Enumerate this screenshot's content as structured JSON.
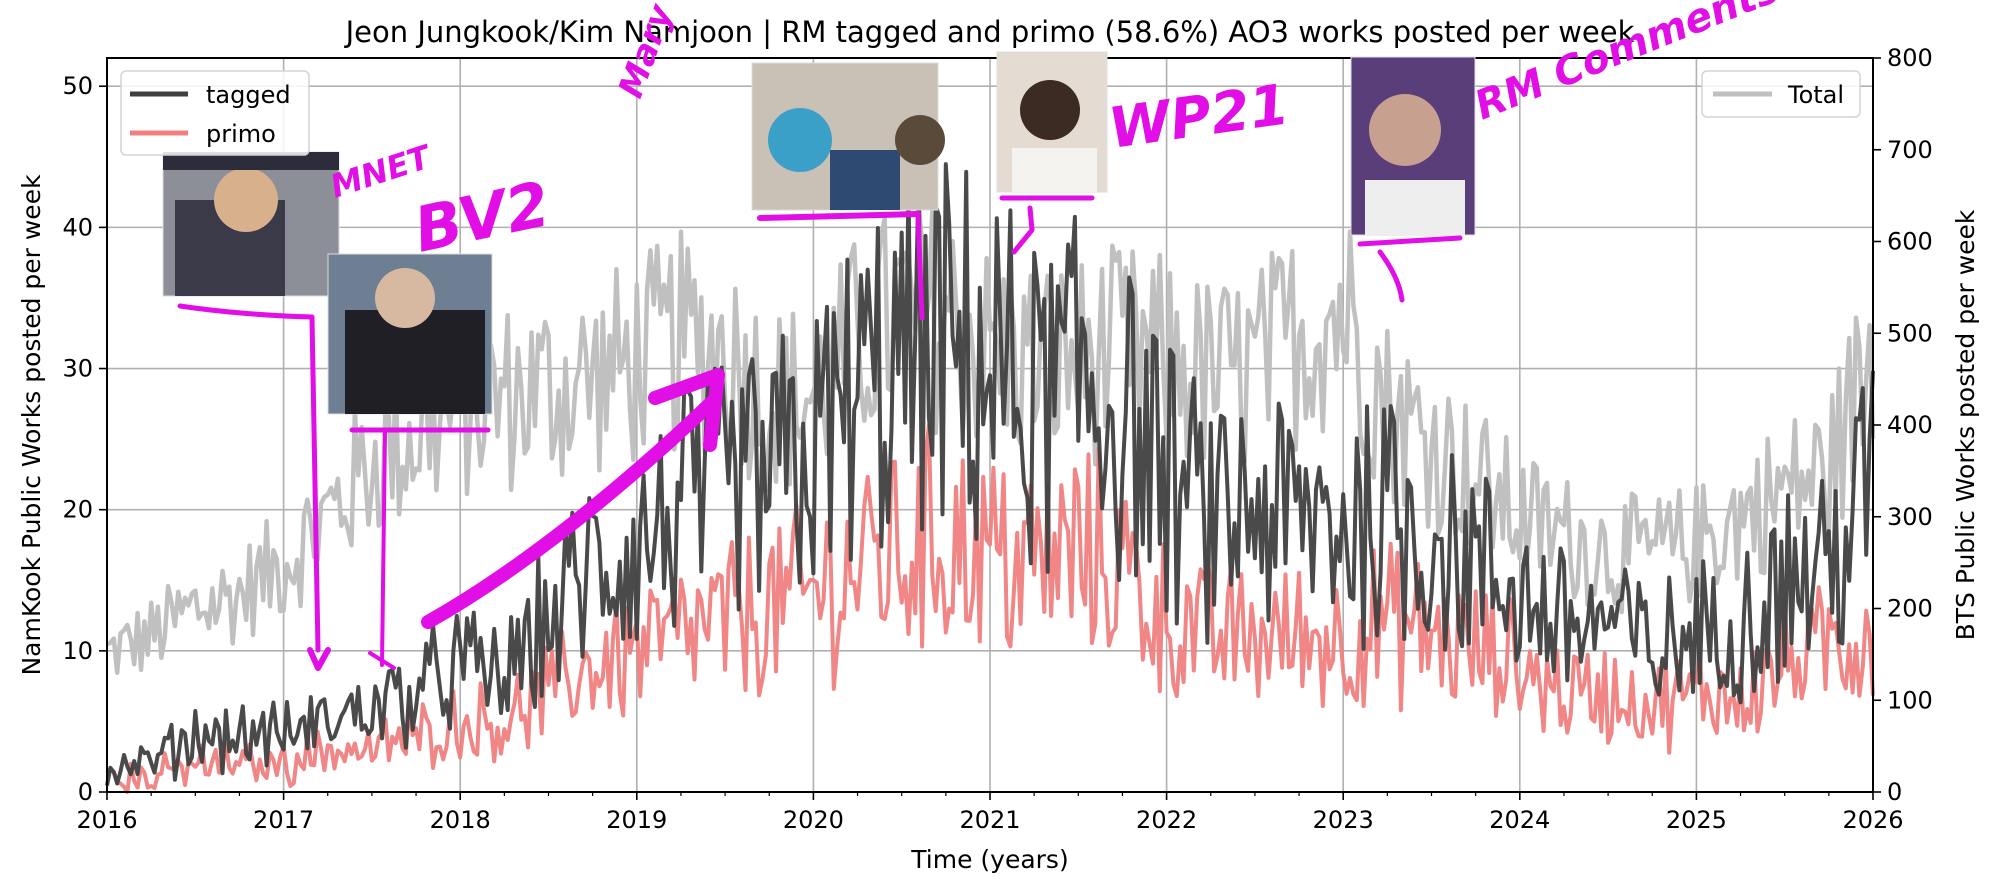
{
  "chart_data": {
    "type": "line",
    "title": "Jeon Jungkook/Kim Namjoon | RM tagged and primo (58.6%) AO3 works posted per week",
    "xlabel": "Time (years)",
    "ylabel_left": "NamKook Public Works posted per week",
    "ylabel_right": "BTS Public Works posted per week",
    "xlim": [
      2016,
      2026
    ],
    "ylim_left": [
      0,
      52
    ],
    "ylim_right": [
      0,
      800
    ],
    "x_ticks": [
      "2016",
      "2017",
      "2018",
      "2019",
      "2020",
      "2021",
      "2022",
      "2023",
      "2024",
      "2025",
      "2026"
    ],
    "y_ticks_left": [
      "0",
      "10",
      "20",
      "30",
      "40",
      "50"
    ],
    "y_ticks_right": [
      "0",
      "100",
      "200",
      "300",
      "400",
      "500",
      "600",
      "700",
      "800"
    ],
    "grid": true,
    "legend_left": {
      "placement": "top-left",
      "entries": [
        "tagged",
        "primo"
      ]
    },
    "legend_right": {
      "placement": "top-right",
      "entries": [
        "Total"
      ]
    },
    "series": [
      {
        "name": "tagged",
        "axis": "left",
        "color": "#404040",
        "points": [
          [
            2016.0,
            1
          ],
          [
            2016.25,
            2
          ],
          [
            2016.5,
            4
          ],
          [
            2016.75,
            4
          ],
          [
            2017.0,
            4
          ],
          [
            2017.25,
            5
          ],
          [
            2017.5,
            6
          ],
          [
            2017.75,
            7
          ],
          [
            2018.0,
            9
          ],
          [
            2018.25,
            8
          ],
          [
            2018.5,
            12
          ],
          [
            2018.75,
            16
          ],
          [
            2019.0,
            17
          ],
          [
            2019.25,
            20
          ],
          [
            2019.5,
            21
          ],
          [
            2019.75,
            22
          ],
          [
            2020.0,
            24
          ],
          [
            2020.25,
            28
          ],
          [
            2020.5,
            30
          ],
          [
            2020.75,
            31
          ],
          [
            2021.0,
            30
          ],
          [
            2021.25,
            27
          ],
          [
            2021.5,
            29
          ],
          [
            2021.75,
            27
          ],
          [
            2022.0,
            22
          ],
          [
            2022.25,
            19
          ],
          [
            2022.5,
            20
          ],
          [
            2022.75,
            19
          ],
          [
            2023.0,
            19
          ],
          [
            2023.25,
            20
          ],
          [
            2023.5,
            18
          ],
          [
            2023.75,
            16
          ],
          [
            2024.0,
            14
          ],
          [
            2024.25,
            12
          ],
          [
            2024.5,
            12
          ],
          [
            2024.75,
            10
          ],
          [
            2025.0,
            11
          ],
          [
            2025.25,
            12
          ],
          [
            2025.5,
            15
          ],
          [
            2025.75,
            16
          ],
          [
            2026.0,
            22
          ]
        ]
      },
      {
        "name": "primo",
        "axis": "left",
        "color": "#f08080",
        "points": [
          [
            2016.0,
            1
          ],
          [
            2016.25,
            1
          ],
          [
            2016.5,
            2
          ],
          [
            2016.75,
            2
          ],
          [
            2017.0,
            2
          ],
          [
            2017.25,
            3
          ],
          [
            2017.5,
            3
          ],
          [
            2017.75,
            4
          ],
          [
            2018.0,
            5
          ],
          [
            2018.25,
            5
          ],
          [
            2018.5,
            7
          ],
          [
            2018.75,
            9
          ],
          [
            2019.0,
            10
          ],
          [
            2019.25,
            11
          ],
          [
            2019.5,
            12
          ],
          [
            2019.75,
            13
          ],
          [
            2020.0,
            14
          ],
          [
            2020.25,
            16
          ],
          [
            2020.5,
            17
          ],
          [
            2020.75,
            18
          ],
          [
            2021.0,
            17
          ],
          [
            2021.25,
            16
          ],
          [
            2021.5,
            17
          ],
          [
            2021.75,
            16
          ],
          [
            2022.0,
            12
          ],
          [
            2022.25,
            11
          ],
          [
            2022.5,
            11
          ],
          [
            2022.75,
            11
          ],
          [
            2023.0,
            11
          ],
          [
            2023.25,
            12
          ],
          [
            2023.5,
            11
          ],
          [
            2023.75,
            10
          ],
          [
            2024.0,
            9
          ],
          [
            2024.25,
            7
          ],
          [
            2024.5,
            7
          ],
          [
            2024.75,
            6
          ],
          [
            2025.0,
            7
          ],
          [
            2025.25,
            7
          ],
          [
            2025.5,
            9
          ],
          [
            2025.75,
            10
          ],
          [
            2026.0,
            12
          ]
        ]
      },
      {
        "name": "Total",
        "axis": "right",
        "color": "#c0c0c0",
        "points": [
          [
            2016.0,
            150
          ],
          [
            2016.25,
            170
          ],
          [
            2016.5,
            200
          ],
          [
            2016.75,
            215
          ],
          [
            2017.0,
            250
          ],
          [
            2017.25,
            300
          ],
          [
            2017.5,
            360
          ],
          [
            2017.75,
            390
          ],
          [
            2018.0,
            420
          ],
          [
            2018.25,
            430
          ],
          [
            2018.5,
            440
          ],
          [
            2018.75,
            450
          ],
          [
            2019.0,
            470
          ],
          [
            2019.25,
            490
          ],
          [
            2019.5,
            480
          ],
          [
            2019.75,
            430
          ],
          [
            2020.0,
            430
          ],
          [
            2020.25,
            490
          ],
          [
            2020.5,
            520
          ],
          [
            2020.75,
            520
          ],
          [
            2021.0,
            480
          ],
          [
            2021.25,
            470
          ],
          [
            2021.5,
            470
          ],
          [
            2021.75,
            480
          ],
          [
            2022.0,
            470
          ],
          [
            2022.25,
            450
          ],
          [
            2022.5,
            460
          ],
          [
            2022.75,
            500
          ],
          [
            2023.0,
            530
          ],
          [
            2023.25,
            420
          ],
          [
            2023.5,
            380
          ],
          [
            2023.75,
            340
          ],
          [
            2024.0,
            300
          ],
          [
            2024.25,
            280
          ],
          [
            2024.5,
            260
          ],
          [
            2024.75,
            260
          ],
          [
            2025.0,
            270
          ],
          [
            2025.25,
            300
          ],
          [
            2025.5,
            330
          ],
          [
            2025.75,
            350
          ],
          [
            2026.0,
            480
          ]
        ]
      }
    ],
    "annotations": [
      "MNET",
      "BV2",
      "Mary Me",
      "WP21",
      "RM Comments"
    ]
  }
}
